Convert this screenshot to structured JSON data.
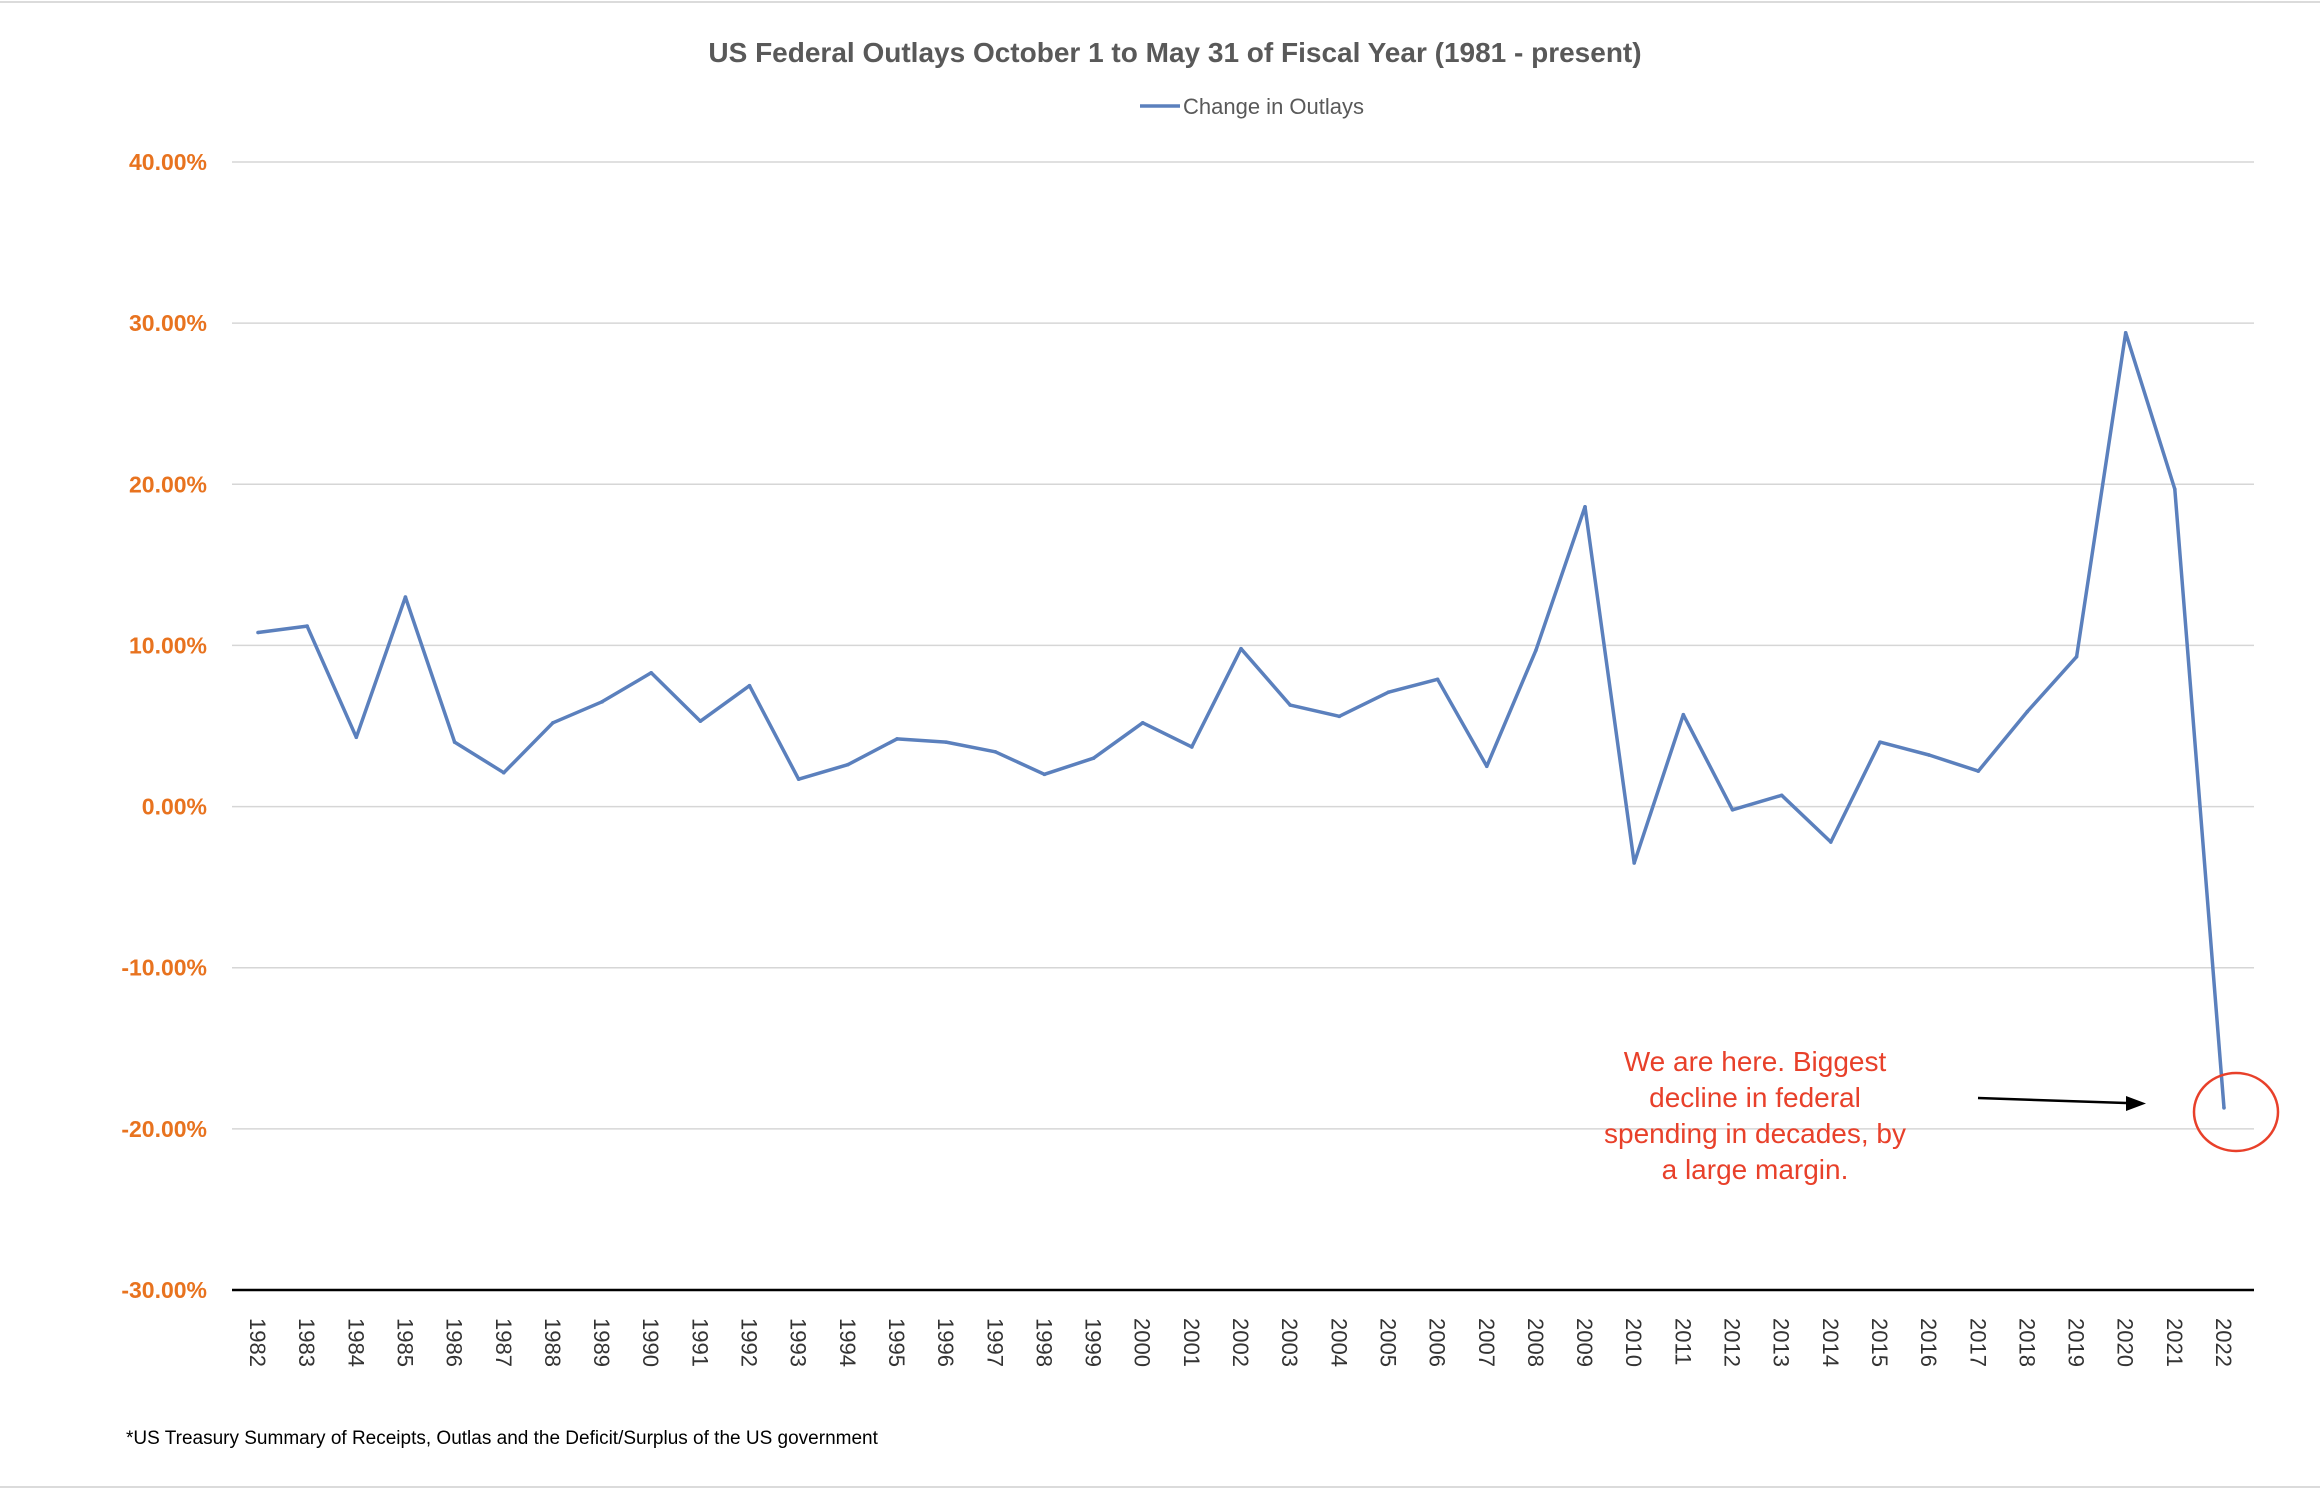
{
  "colors": {
    "series": "#5b80bd",
    "tick_labels": "#e8731f",
    "annotation": "#e8402a",
    "arrow": "#000000"
  },
  "chart_data": {
    "type": "line",
    "title": "US Federal Outlays October 1 to May 31 of Fiscal Year (1981 - present)",
    "xlabel": "",
    "ylabel": "",
    "ylim": [
      -0.3,
      0.4
    ],
    "y_ticks": [
      -0.3,
      -0.2,
      -0.1,
      0.0,
      0.1,
      0.2,
      0.3,
      0.4
    ],
    "y_tick_labels": [
      "-30.00%",
      "-20.00%",
      "-10.00%",
      "0.00%",
      "10.00%",
      "20.00%",
      "30.00%",
      "40.00%"
    ],
    "grid": true,
    "legend_position": "top-center",
    "categories": [
      "1982",
      "1983",
      "1984",
      "1985",
      "1986",
      "1987",
      "1988",
      "1989",
      "1990",
      "1991",
      "1992",
      "1993",
      "1994",
      "1995",
      "1996",
      "1997",
      "1998",
      "1999",
      "2000",
      "2001",
      "2002",
      "2003",
      "2004",
      "2005",
      "2006",
      "2007",
      "2008",
      "2009",
      "2010",
      "2011",
      "2012",
      "2013",
      "2014",
      "2015",
      "2016",
      "2017",
      "2018",
      "2019",
      "2020",
      "2021",
      "2022"
    ],
    "series": [
      {
        "name": "Change in Outlays",
        "values": [
          0.108,
          0.112,
          0.043,
          0.13,
          0.04,
          0.021,
          0.052,
          0.065,
          0.083,
          0.053,
          0.075,
          0.017,
          0.026,
          0.042,
          0.04,
          0.034,
          0.02,
          0.03,
          0.052,
          0.037,
          0.098,
          0.063,
          0.056,
          0.071,
          0.079,
          0.025,
          0.097,
          0.186,
          -0.035,
          0.057,
          -0.002,
          0.007,
          -0.022,
          0.04,
          0.032,
          0.022,
          0.059,
          0.093,
          0.294,
          0.197,
          -0.187
        ]
      }
    ],
    "annotation": {
      "lines": [
        "We are here. Biggest",
        "decline in federal",
        "spending in decades, by",
        "a large margin."
      ]
    },
    "footnote": "*US Treasury Summary of Receipts, Outlas and the Deficit/Surplus of the US government"
  }
}
